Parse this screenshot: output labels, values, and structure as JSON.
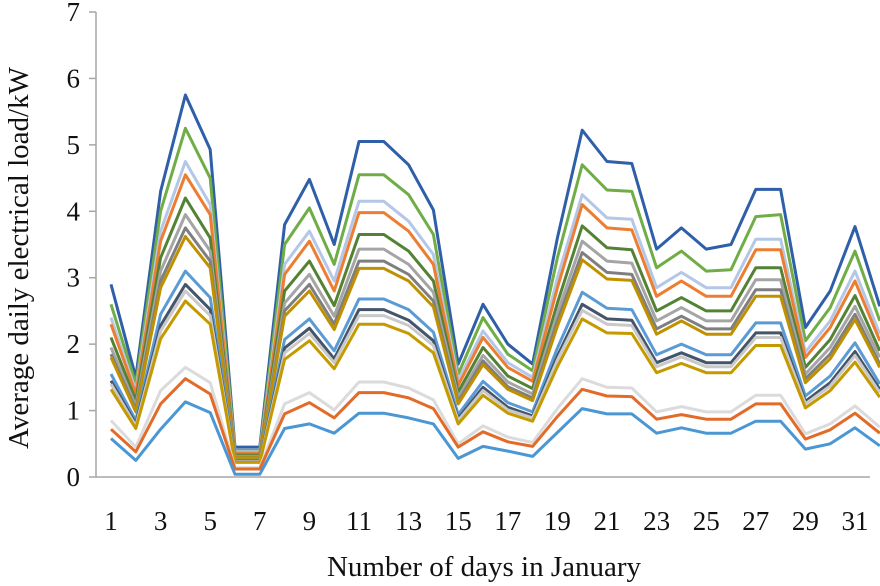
{
  "chart_data": {
    "type": "line",
    "title": "",
    "xlabel": "Number of days in January",
    "ylabel": "Average daily electrical load/kW",
    "ylim": [
      0,
      7
    ],
    "xlim": [
      1,
      32
    ],
    "grid": false,
    "legend": "none",
    "x": [
      1,
      2,
      3,
      4,
      5,
      6,
      7,
      8,
      9,
      10,
      11,
      12,
      13,
      14,
      15,
      16,
      17,
      18,
      19,
      20,
      21,
      22,
      23,
      24,
      25,
      26,
      27,
      28,
      29,
      30,
      31,
      32
    ],
    "x_tick_labels": [
      "1",
      "3",
      "5",
      "7",
      "9",
      "11",
      "13",
      "15",
      "17",
      "19",
      "21",
      "23",
      "25",
      "27",
      "29",
      "31"
    ],
    "y_tick_labels": [
      "0",
      "1",
      "2",
      "3",
      "4",
      "5",
      "6",
      "7"
    ],
    "series": [
      {
        "color": "#2e5fa8",
        "values": [
          2.9,
          1.5,
          4.3,
          5.75,
          4.93,
          0.45,
          0.45,
          3.8,
          4.48,
          3.5,
          5.05,
          5.05,
          4.7,
          4.02,
          1.7,
          2.6,
          2.0,
          1.7,
          3.6,
          5.22,
          4.75,
          4.72,
          3.43,
          3.75,
          3.43,
          3.5,
          4.33,
          4.33,
          2.25,
          2.8,
          3.77,
          2.57
        ]
      },
      {
        "color": "#70ad47",
        "values": [
          2.6,
          1.4,
          4.0,
          5.25,
          4.5,
          0.4,
          0.4,
          3.5,
          4.05,
          3.2,
          4.55,
          4.55,
          4.25,
          3.65,
          1.55,
          2.4,
          1.85,
          1.6,
          3.3,
          4.7,
          4.32,
          4.3,
          3.15,
          3.4,
          3.1,
          3.12,
          3.92,
          3.95,
          2.05,
          2.55,
          3.4,
          2.35
        ]
      },
      {
        "color": "#b4c7e7",
        "values": [
          2.4,
          1.3,
          3.7,
          4.75,
          4.1,
          0.38,
          0.38,
          3.2,
          3.7,
          2.95,
          4.15,
          4.15,
          3.85,
          3.35,
          1.45,
          2.2,
          1.72,
          1.5,
          3.0,
          4.25,
          3.9,
          3.88,
          2.85,
          3.08,
          2.85,
          2.85,
          3.58,
          3.58,
          1.88,
          2.35,
          3.1,
          2.15
        ]
      },
      {
        "color": "#ed7d31",
        "values": [
          2.3,
          1.25,
          3.55,
          4.55,
          3.95,
          0.36,
          0.36,
          3.05,
          3.55,
          2.8,
          3.98,
          3.98,
          3.7,
          3.2,
          1.38,
          2.1,
          1.65,
          1.44,
          2.85,
          4.1,
          3.75,
          3.72,
          2.72,
          2.95,
          2.72,
          2.72,
          3.42,
          3.42,
          1.8,
          2.25,
          2.95,
          2.05
        ]
      },
      {
        "color": "#548235",
        "values": [
          2.1,
          1.15,
          3.3,
          4.2,
          3.6,
          0.33,
          0.33,
          2.8,
          3.25,
          2.58,
          3.65,
          3.65,
          3.4,
          2.95,
          1.28,
          1.95,
          1.52,
          1.33,
          2.62,
          3.78,
          3.45,
          3.42,
          2.5,
          2.7,
          2.5,
          2.5,
          3.15,
          3.15,
          1.65,
          2.07,
          2.73,
          1.9
        ]
      },
      {
        "color": "#a5a5a5",
        "values": [
          1.95,
          1.07,
          3.1,
          3.95,
          3.4,
          0.31,
          0.31,
          2.62,
          3.05,
          2.42,
          3.43,
          3.43,
          3.2,
          2.78,
          1.2,
          1.83,
          1.43,
          1.25,
          2.47,
          3.55,
          3.25,
          3.22,
          2.35,
          2.55,
          2.35,
          2.35,
          2.97,
          2.97,
          1.55,
          1.95,
          2.57,
          1.8
        ]
      },
      {
        "color": "#7f7f7f",
        "values": [
          1.85,
          1.02,
          2.95,
          3.75,
          3.25,
          0.3,
          0.3,
          2.5,
          2.9,
          2.3,
          3.25,
          3.25,
          3.05,
          2.65,
          1.14,
          1.75,
          1.36,
          1.19,
          2.35,
          3.38,
          3.08,
          3.05,
          2.23,
          2.42,
          2.23,
          2.23,
          2.82,
          2.82,
          1.48,
          1.85,
          2.45,
          1.7
        ]
      },
      {
        "color": "#bf9000",
        "values": [
          1.8,
          0.98,
          2.85,
          3.62,
          3.15,
          0.29,
          0.29,
          2.42,
          2.8,
          2.22,
          3.14,
          3.14,
          2.95,
          2.56,
          1.1,
          1.69,
          1.32,
          1.15,
          2.27,
          3.27,
          2.98,
          2.96,
          2.15,
          2.35,
          2.15,
          2.15,
          2.72,
          2.72,
          1.42,
          1.78,
          2.37,
          1.65
        ]
      },
      {
        "color": "#5b9bd5",
        "values": [
          1.55,
          0.85,
          2.45,
          3.1,
          2.7,
          0.25,
          0.25,
          2.07,
          2.38,
          1.9,
          2.68,
          2.68,
          2.52,
          2.18,
          0.94,
          1.44,
          1.12,
          0.98,
          1.94,
          2.78,
          2.54,
          2.52,
          1.84,
          2.0,
          1.84,
          1.84,
          2.32,
          2.32,
          1.22,
          1.52,
          2.02,
          1.4
        ]
      },
      {
        "color": "#44546a",
        "values": [
          1.45,
          0.8,
          2.28,
          2.9,
          2.52,
          0.24,
          0.24,
          1.94,
          2.24,
          1.78,
          2.52,
          2.52,
          2.36,
          2.05,
          0.88,
          1.35,
          1.05,
          0.92,
          1.82,
          2.6,
          2.38,
          2.36,
          1.72,
          1.87,
          1.72,
          1.72,
          2.17,
          2.17,
          1.14,
          1.42,
          1.89,
          1.32
        ]
      },
      {
        "color": "#c9c9c9",
        "values": [
          1.4,
          0.77,
          2.2,
          2.8,
          2.43,
          0.23,
          0.23,
          1.87,
          2.16,
          1.72,
          2.43,
          2.43,
          2.28,
          1.98,
          0.85,
          1.3,
          1.01,
          0.89,
          1.76,
          2.51,
          2.3,
          2.28,
          1.66,
          1.81,
          1.66,
          1.66,
          2.1,
          2.1,
          1.1,
          1.37,
          1.83,
          1.27
        ]
      },
      {
        "color": "#c49a00",
        "values": [
          1.32,
          0.73,
          2.08,
          2.65,
          2.3,
          0.22,
          0.22,
          1.77,
          2.05,
          1.63,
          2.3,
          2.3,
          2.16,
          1.87,
          0.8,
          1.23,
          0.96,
          0.84,
          1.66,
          2.38,
          2.17,
          2.16,
          1.57,
          1.71,
          1.57,
          1.57,
          1.98,
          1.98,
          1.04,
          1.3,
          1.73,
          1.2
        ]
      },
      {
        "color": "#dbdbdb",
        "values": [
          0.85,
          0.45,
          1.3,
          1.65,
          1.42,
          0.14,
          0.14,
          1.1,
          1.27,
          1.01,
          1.43,
          1.43,
          1.34,
          1.16,
          0.5,
          0.77,
          0.6,
          0.52,
          1.03,
          1.48,
          1.35,
          1.34,
          0.98,
          1.06,
          0.98,
          0.98,
          1.23,
          1.23,
          0.65,
          0.8,
          1.07,
          0.75
        ]
      },
      {
        "color": "#e26b2a",
        "values": [
          0.72,
          0.38,
          1.1,
          1.48,
          1.25,
          0.12,
          0.12,
          0.95,
          1.12,
          0.89,
          1.27,
          1.27,
          1.19,
          1.03,
          0.45,
          0.68,
          0.53,
          0.46,
          0.91,
          1.32,
          1.22,
          1.21,
          0.87,
          0.94,
          0.87,
          0.87,
          1.1,
          1.1,
          0.57,
          0.71,
          0.96,
          0.66
        ]
      },
      {
        "color": "#4a97d4",
        "values": [
          0.58,
          0.25,
          0.72,
          1.13,
          0.97,
          0.04,
          0.04,
          0.73,
          0.8,
          0.66,
          0.96,
          0.96,
          0.89,
          0.8,
          0.28,
          0.46,
          0.39,
          0.31,
          0.67,
          1.03,
          0.95,
          0.95,
          0.66,
          0.74,
          0.66,
          0.66,
          0.84,
          0.84,
          0.42,
          0.5,
          0.74,
          0.47
        ]
      }
    ]
  }
}
